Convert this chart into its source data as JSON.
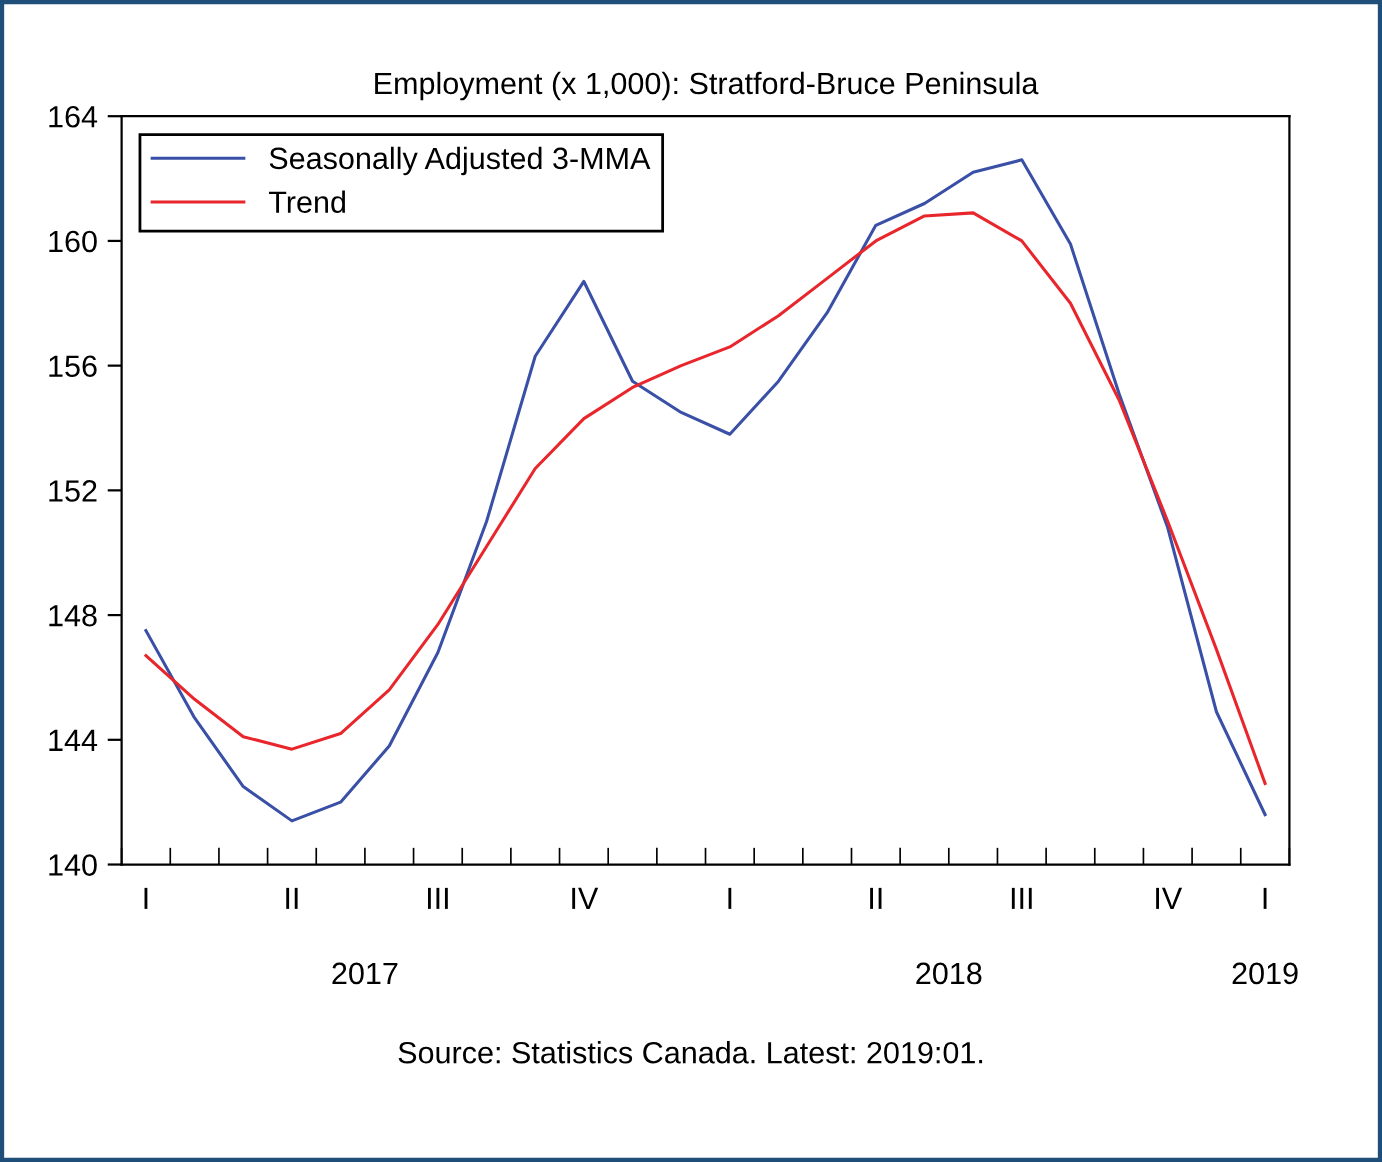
{
  "chart_data": {
    "type": "line",
    "title": "Employment (x 1,000): Stratford-Bruce Peninsula",
    "categories": [
      "I",
      null,
      null,
      "II",
      null,
      null,
      "III",
      null,
      null,
      "IV",
      null,
      null,
      "I",
      null,
      null,
      "II",
      null,
      null,
      "III",
      null,
      null,
      "IV",
      null,
      "I"
    ],
    "series": [
      {
        "name": "Seasonally Adjusted 3-MMA",
        "color": "#3a4fa6",
        "values": [
          147.5,
          144.7,
          142.5,
          141.4,
          142.0,
          143.8,
          146.8,
          151.0,
          156.3,
          158.7,
          155.5,
          154.5,
          153.8,
          155.5,
          157.7,
          160.5,
          161.2,
          162.2,
          162.6,
          159.9,
          155.1,
          150.8,
          144.9,
          141.6
        ]
      },
      {
        "name": "Trend",
        "color": "#e8262b",
        "values": [
          146.7,
          145.3,
          144.1,
          143.7,
          144.2,
          145.6,
          147.7,
          150.2,
          152.7,
          154.3,
          155.3,
          156.0,
          156.6,
          157.6,
          158.8,
          160.0,
          160.8,
          160.9,
          160.0,
          158.0,
          154.9,
          151.0,
          146.9,
          142.6
        ]
      }
    ],
    "ylim": [
      140,
      164
    ],
    "yticks": [
      140,
      144,
      148,
      152,
      156,
      160,
      164
    ],
    "grid": false,
    "legend": "top left",
    "marker": "none",
    "line_style": "solid",
    "annotations": [
      "2017",
      "2018",
      "2019",
      "Source: Statistics Canada. Latest: 2019:01."
    ]
  }
}
